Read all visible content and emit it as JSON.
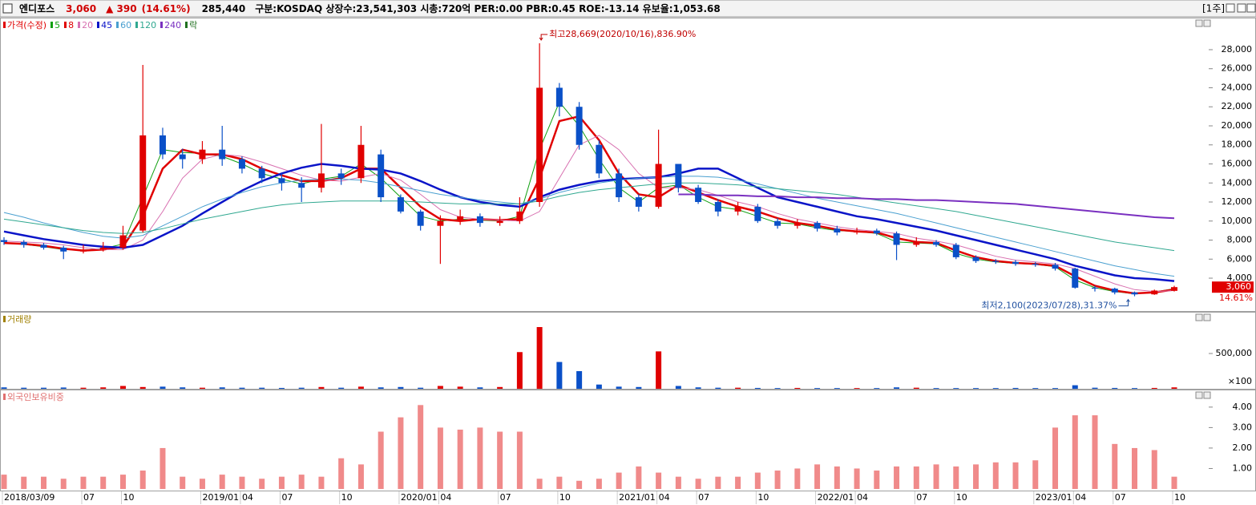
{
  "header": {
    "name": "엔디포스",
    "price": "3,060",
    "change": "▲ 390",
    "change_pct": "(14.61%)",
    "volume": "285,440",
    "info": "구분:KOSDAQ 상장수:23,541,303 시총:720억 PER:0.00 PBR:0.45 ROE:-13.14 유보율:1,053.68",
    "period": "[1주]"
  },
  "chart_data": [
    {
      "type": "candlestick",
      "legend_title": "가격(수정)",
      "up_color": "#e00000",
      "down_color": "#0a50c8",
      "open": [
        8000,
        7800,
        7500,
        7200,
        6800,
        7000,
        7200,
        9000,
        19000,
        17000,
        16500,
        17500,
        16500,
        15500,
        14500,
        14000,
        13500,
        15000,
        14500,
        17000,
        12500,
        11000,
        9500,
        10000,
        10500,
        9800,
        10000,
        12000,
        24000,
        22000,
        18000,
        15000,
        12500,
        11500,
        16000,
        13500,
        12000,
        11000,
        11500,
        10000,
        9500,
        9800,
        9200,
        8800,
        9000,
        8700,
        7500,
        7800,
        7500,
        6200,
        5800,
        5700,
        5500,
        5400,
        5000,
        3000,
        2900,
        2500,
        2300,
        2670
      ],
      "high": [
        8300,
        8000,
        7700,
        7400,
        7500,
        7800,
        9500,
        26400,
        19800,
        17600,
        18400,
        20000,
        16800,
        15800,
        15000,
        14600,
        20200,
        15500,
        20000,
        17500,
        12800,
        11200,
        10600,
        11200,
        10800,
        10500,
        12500,
        28669,
        24500,
        22500,
        18500,
        15500,
        12800,
        19600,
        16000,
        13800,
        12300,
        12000,
        11800,
        10300,
        10200,
        10000,
        9500,
        9300,
        9200,
        8900,
        8300,
        8000,
        7700,
        6400,
        6000,
        5900,
        5700,
        5600,
        5100,
        3200,
        3000,
        2600,
        2800,
        3200
      ],
      "low": [
        7500,
        7200,
        7000,
        6000,
        6600,
        6800,
        7000,
        8800,
        16500,
        15500,
        16000,
        15800,
        15000,
        14000,
        13200,
        12000,
        13000,
        13800,
        14000,
        12000,
        10800,
        9000,
        5500,
        9600,
        9400,
        9500,
        9700,
        11500,
        21000,
        17500,
        14500,
        12000,
        11000,
        11300,
        13000,
        11800,
        10500,
        10600,
        9800,
        9200,
        9200,
        8900,
        8500,
        8600,
        8500,
        5900,
        7300,
        7300,
        6000,
        5600,
        5500,
        5300,
        5200,
        4800,
        2900,
        2600,
        2300,
        2100,
        2250,
        2600
      ],
      "close": [
        7800,
        7500,
        7200,
        6800,
        7000,
        7200,
        8500,
        19000,
        17000,
        16500,
        17500,
        16500,
        15500,
        14500,
        14000,
        13500,
        15000,
        14500,
        18000,
        12500,
        11000,
        9500,
        10000,
        10500,
        9800,
        10000,
        11000,
        24000,
        22000,
        18000,
        15000,
        12500,
        11500,
        16000,
        13500,
        12000,
        11000,
        11500,
        10000,
        9500,
        9800,
        9200,
        8800,
        9000,
        8700,
        7500,
        7800,
        7500,
        6200,
        5800,
        5700,
        5500,
        5400,
        5000,
        3000,
        2900,
        2500,
        2300,
        2700,
        3060
      ],
      "series": [
        {
          "name": "5",
          "color": "#10a010",
          "width": 1,
          "values": [
            7750,
            7550,
            7300,
            7000,
            6950,
            7100,
            7600,
            12500,
            17500,
            17200,
            17100,
            16800,
            16000,
            15000,
            14400,
            13900,
            14400,
            14700,
            16000,
            14500,
            12500,
            10500,
            10000,
            10200,
            10100,
            10000,
            10500,
            17500,
            22500,
            20000,
            16500,
            13500,
            12000,
            13500,
            13800,
            12500,
            11500,
            11200,
            10500,
            9800,
            9700,
            9300,
            9000,
            8900,
            8700,
            7800,
            7700,
            7600,
            6600,
            6000,
            5700,
            5550,
            5450,
            5200,
            3800,
            3000,
            2600,
            2350,
            2550,
            2900
          ]
        },
        {
          "name": "8",
          "color": "#e00000",
          "width": 2.5,
          "values": [
            7700,
            7600,
            7400,
            7100,
            6900,
            7000,
            7300,
            10500,
            15500,
            17500,
            17000,
            17000,
            16500,
            15500,
            14800,
            14200,
            14200,
            14500,
            15500,
            15500,
            13500,
            11500,
            10200,
            10000,
            10200,
            10100,
            10200,
            14500,
            20500,
            21000,
            18500,
            15000,
            12800,
            12500,
            13800,
            13000,
            12200,
            11500,
            11000,
            10300,
            9800,
            9500,
            9100,
            8900,
            8800,
            8200,
            7800,
            7700,
            6900,
            6200,
            5800,
            5600,
            5500,
            5300,
            4200,
            3200,
            2700,
            2400,
            2500,
            2800
          ]
        },
        {
          "name": "20",
          "color": "#d870b0",
          "width": 1,
          "values": [
            7900,
            7800,
            7700,
            7500,
            7200,
            7000,
            7000,
            8000,
            11000,
            14500,
            16500,
            17000,
            16800,
            16200,
            15500,
            14800,
            14300,
            14200,
            14600,
            15000,
            14300,
            12800,
            11200,
            10400,
            10200,
            10100,
            10000,
            11000,
            14500,
            18000,
            19000,
            17500,
            15000,
            13500,
            13500,
            13300,
            12700,
            12000,
            11500,
            10800,
            10200,
            9800,
            9400,
            9100,
            8900,
            8700,
            8200,
            7900,
            7500,
            6900,
            6300,
            5900,
            5700,
            5500,
            5000,
            4200,
            3400,
            2800,
            2600,
            2700
          ]
        },
        {
          "name": "45",
          "color": "#0a14c8",
          "width": 2.5,
          "values": [
            8900,
            8500,
            8100,
            7800,
            7500,
            7300,
            7200,
            7500,
            8500,
            9500,
            10800,
            12000,
            13200,
            14200,
            15000,
            15600,
            16000,
            15800,
            15500,
            15400,
            15000,
            14200,
            13300,
            12500,
            12000,
            11700,
            11500,
            12500,
            13300,
            13800,
            14200,
            14400,
            14500,
            14600,
            15000,
            15500,
            15500,
            14500,
            13500,
            12500,
            12000,
            11500,
            11000,
            10500,
            10200,
            9800,
            9400,
            9000,
            8500,
            8000,
            7500,
            7000,
            6500,
            6000,
            5300,
            4800,
            4300,
            4000,
            3900,
            3700
          ]
        },
        {
          "name": "60",
          "color": "#4aa0d0",
          "width": 1,
          "values": [
            10900,
            10400,
            9800,
            9300,
            8800,
            8400,
            8200,
            8500,
            9500,
            10500,
            11500,
            12300,
            13000,
            13600,
            14000,
            14300,
            14400,
            14400,
            14300,
            14000,
            13600,
            13200,
            12800,
            12500,
            12200,
            12000,
            11800,
            12300,
            13000,
            13500,
            14000,
            14300,
            14500,
            14600,
            14700,
            14700,
            14600,
            14300,
            13900,
            13400,
            12900,
            12400,
            12000,
            11600,
            11200,
            10800,
            10300,
            9800,
            9300,
            8800,
            8300,
            7800,
            7300,
            6800,
            6300,
            5800,
            5300,
            4900,
            4500,
            4200
          ]
        },
        {
          "name": "120",
          "color": "#30a890",
          "width": 1,
          "values": [
            10200,
            9900,
            9600,
            9300,
            9000,
            8800,
            8700,
            8800,
            9200,
            9700,
            10200,
            10600,
            11000,
            11400,
            11700,
            11900,
            12000,
            12100,
            12100,
            12100,
            12100,
            12000,
            11900,
            11800,
            11800,
            11800,
            11800,
            12100,
            12600,
            13000,
            13300,
            13500,
            13700,
            13900,
            14000,
            14000,
            13900,
            13800,
            13600,
            13400,
            13200,
            13000,
            12800,
            12500,
            12200,
            11900,
            11600,
            11300,
            11000,
            10600,
            10200,
            9800,
            9400,
            9000,
            8600,
            8200,
            7800,
            7500,
            7200,
            6900
          ]
        },
        {
          "name": "240",
          "color": "#7a30c0",
          "width": 2,
          "values": [
            null,
            null,
            null,
            null,
            null,
            null,
            null,
            null,
            null,
            null,
            null,
            null,
            null,
            null,
            null,
            null,
            null,
            null,
            null,
            null,
            null,
            null,
            null,
            null,
            null,
            null,
            null,
            null,
            null,
            null,
            null,
            null,
            null,
            null,
            12800,
            12800,
            12700,
            12700,
            12600,
            12600,
            12500,
            12500,
            12400,
            12400,
            12300,
            12300,
            12200,
            12200,
            12100,
            12000,
            11900,
            11800,
            11600,
            11400,
            11200,
            11000,
            10800,
            10600,
            10400,
            10300
          ]
        }
      ],
      "ex_rights_label": "락",
      "ex_rights_color": "#207020",
      "ylim": [
        550,
        30860
      ],
      "yticks": [
        {
          "value": 4000,
          "label": "4,000"
        },
        {
          "value": 6000,
          "label": "6,000"
        },
        {
          "value": 8000,
          "label": "8,000"
        },
        {
          "value": 10000,
          "label": "10,000"
        },
        {
          "value": 12000,
          "label": "12,000"
        },
        {
          "value": 14000,
          "label": "14,000"
        },
        {
          "value": 16000,
          "label": "16,000"
        },
        {
          "value": 18000,
          "label": "18,000"
        },
        {
          "value": 20000,
          "label": "20,000"
        },
        {
          "value": 22000,
          "label": "22,000"
        },
        {
          "value": 24000,
          "label": "24,000"
        },
        {
          "value": 26000,
          "label": "26,000"
        },
        {
          "value": 28000,
          "label": "28,000"
        }
      ],
      "high_annotation": "최고28,669(2020/10/16),836.90%",
      "high_annotation_color": "#c00000",
      "low_annotation": "최저2,100(2023/07/28),31.37%",
      "low_annotation_color": "#2050a0",
      "last_value_label": "3,060",
      "last_change_label": "14.61%"
    },
    {
      "type": "bar",
      "title": "거래량",
      "title_color": "#a08000",
      "values": [
        20000,
        15000,
        15000,
        18000,
        15000,
        20000,
        40000,
        25000,
        30000,
        20000,
        15000,
        20000,
        15000,
        15000,
        12000,
        15000,
        25000,
        15000,
        30000,
        20000,
        25000,
        15000,
        40000,
        30000,
        20000,
        25000,
        520000,
        875000,
        380000,
        250000,
        60000,
        30000,
        25000,
        530000,
        40000,
        20000,
        15000,
        15000,
        12000,
        10000,
        12000,
        10000,
        10000,
        10000,
        10000,
        20000,
        15000,
        10000,
        10000,
        10000,
        10000,
        12000,
        10000,
        10000,
        50000,
        15000,
        12000,
        10000,
        12000,
        20000
      ],
      "ylim": [
        0,
        966000
      ],
      "yticks": [
        {
          "value": 500000,
          "label": "500,000"
        }
      ],
      "unit_label": "×100"
    },
    {
      "type": "bar",
      "title": "외국인보유비중",
      "title_color": "#e07070",
      "color": "#f08a8a",
      "values": [
        0.7,
        0.6,
        0.6,
        0.5,
        0.6,
        0.6,
        0.7,
        0.9,
        2.0,
        0.6,
        0.5,
        0.7,
        0.6,
        0.5,
        0.6,
        0.7,
        0.6,
        1.5,
        1.2,
        2.8,
        3.5,
        4.1,
        3.0,
        2.9,
        3.0,
        2.8,
        2.8,
        0.5,
        0.6,
        0.4,
        0.5,
        0.8,
        1.1,
        0.8,
        0.6,
        0.5,
        0.6,
        0.6,
        0.8,
        0.9,
        1.0,
        1.2,
        1.1,
        1.0,
        0.9,
        1.1,
        1.1,
        1.2,
        1.1,
        1.2,
        1.3,
        1.3,
        1.4,
        3.0,
        3.6,
        3.6,
        2.2,
        2.0,
        1.9,
        0.6
      ],
      "ylim": [
        0,
        4.7
      ],
      "yticks": [
        {
          "value": 1,
          "label": "1.00"
        },
        {
          "value": 2,
          "label": "2.00"
        },
        {
          "value": 3,
          "label": "3.00"
        },
        {
          "value": 4,
          "label": "4.00"
        }
      ],
      "categories": [
        "2018/03/09",
        null,
        null,
        null,
        "07",
        null,
        "10",
        null,
        null,
        null,
        "2019/01",
        null,
        "04",
        null,
        "07",
        null,
        null,
        "10",
        null,
        null,
        "2020/01",
        null,
        "04",
        null,
        null,
        "07",
        null,
        null,
        "10",
        null,
        null,
        "2021/01",
        null,
        "04",
        null,
        "07",
        null,
        null,
        "10",
        null,
        null,
        "2022/01",
        null,
        "04",
        null,
        null,
        "07",
        null,
        "10",
        null,
        null,
        null,
        "2023/01",
        null,
        "04",
        null,
        "07",
        null,
        null,
        "10"
      ]
    }
  ]
}
